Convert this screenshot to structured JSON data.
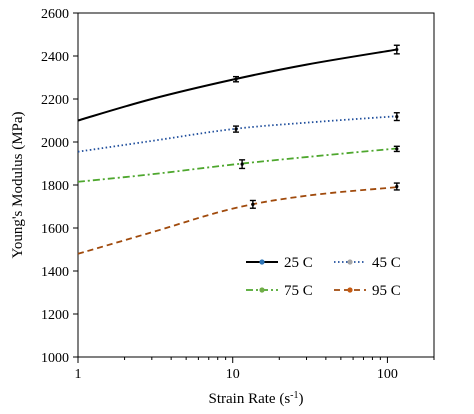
{
  "chart_data": {
    "type": "line",
    "title": "",
    "xlabel": "Strain Rate (s⁻¹)",
    "xlabel_parts": {
      "main": "Strain Rate (s",
      "sup": "-1",
      "close": ")"
    },
    "ylabel": "Young's Modulus (MPa)",
    "xscale": "log",
    "xlim": [
      1,
      200
    ],
    "ylim": [
      1000,
      2600
    ],
    "x_ticks": [
      1,
      10,
      100
    ],
    "x_tick_labels": [
      "1",
      "10",
      "100"
    ],
    "y_ticks": [
      1000,
      1200,
      1400,
      1600,
      1800,
      2000,
      2200,
      2400,
      2600
    ],
    "y_tick_labels": [
      "1000",
      "1200",
      "1400",
      "1600",
      "1800",
      "2000",
      "2200",
      "2400",
      "2600"
    ],
    "grid": false,
    "legend_position": "lower-right",
    "series": [
      {
        "name": "25 C",
        "color": "#000000",
        "dash": "solid",
        "marker_color": "#2e75b6",
        "curve": {
          "x": [
            1,
            3,
            10,
            30,
            115
          ],
          "y": [
            2100,
            2200,
            2290,
            2360,
            2430
          ]
        },
        "points": [
          {
            "x": 10.5,
            "y": 2292,
            "err": 12
          },
          {
            "x": 115,
            "y": 2430,
            "err": 20
          }
        ]
      },
      {
        "name": "45 C",
        "color": "#1f4e9c",
        "dash": "dotted",
        "marker_color": "#a5a5a5",
        "curve": {
          "x": [
            1,
            3,
            10,
            30,
            115
          ],
          "y": [
            1955,
            2005,
            2060,
            2090,
            2120
          ]
        },
        "points": [
          {
            "x": 10.5,
            "y": 2060,
            "err": 14
          },
          {
            "x": 115,
            "y": 2118,
            "err": 18
          }
        ]
      },
      {
        "name": "75 C",
        "color": "#4ea72e",
        "dash": "dashdot",
        "marker_color": "#70ad47",
        "curve": {
          "x": [
            1,
            3,
            10,
            30,
            115
          ],
          "y": [
            1815,
            1850,
            1895,
            1930,
            1970
          ]
        },
        "points": [
          {
            "x": 11.5,
            "y": 1897,
            "err": 20
          },
          {
            "x": 115,
            "y": 1968,
            "err": 12
          }
        ]
      },
      {
        "name": "95 C",
        "color": "#a04a0c",
        "dash": "dashed",
        "marker_color": "#c55a11",
        "curve": {
          "x": [
            1,
            3,
            10,
            30,
            115
          ],
          "y": [
            1480,
            1580,
            1690,
            1750,
            1790
          ]
        },
        "points": [
          {
            "x": 13.5,
            "y": 1710,
            "err": 18
          },
          {
            "x": 115,
            "y": 1793,
            "err": 16
          }
        ]
      }
    ]
  }
}
